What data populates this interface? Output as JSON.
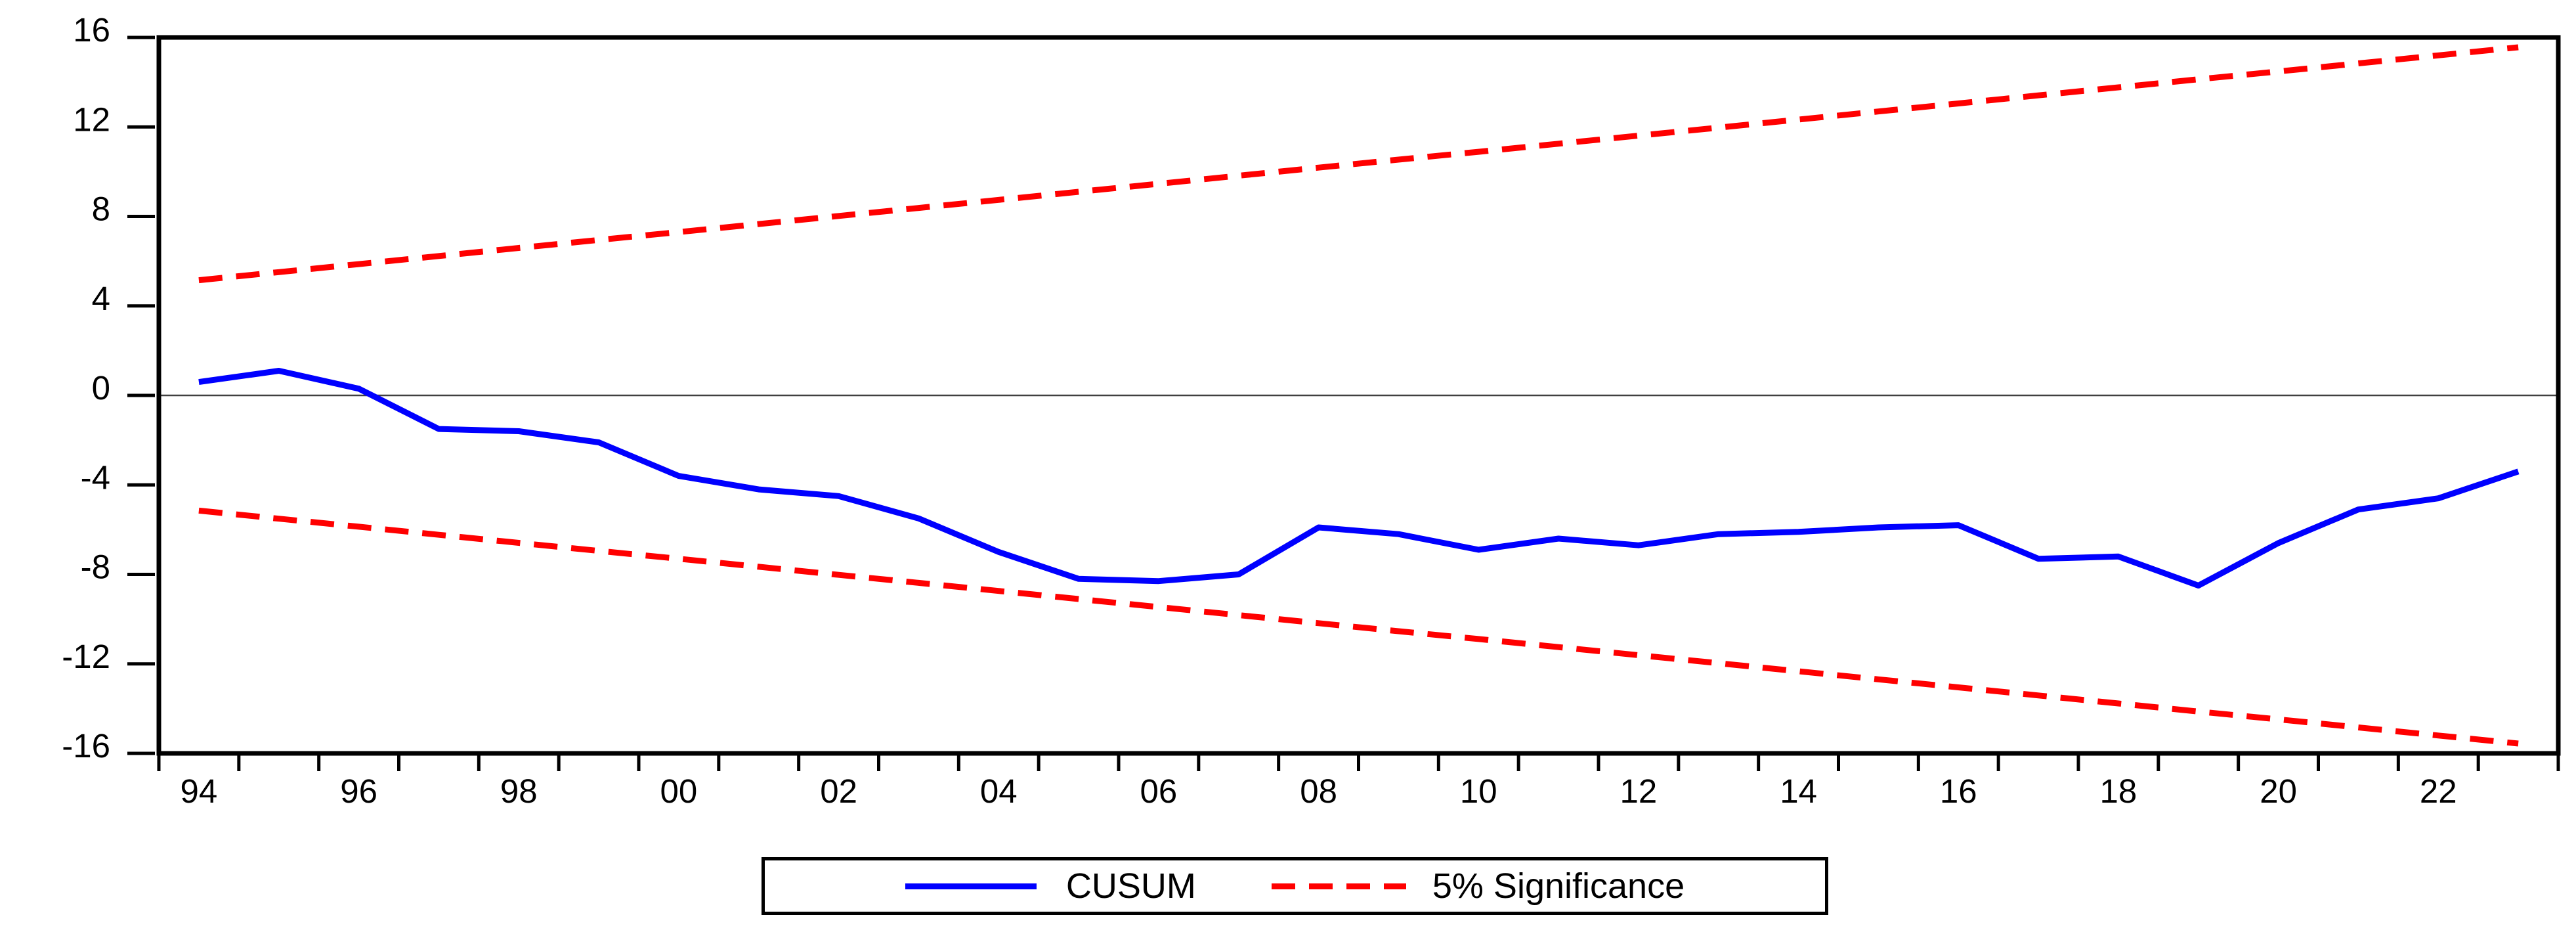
{
  "chart_data": {
    "type": "line",
    "title": "",
    "xlabel": "",
    "ylabel": "",
    "x": [
      1994,
      1995,
      1996,
      1997,
      1998,
      1999,
      2000,
      2001,
      2002,
      2003,
      2004,
      2005,
      2006,
      2007,
      2008,
      2009,
      2010,
      2011,
      2012,
      2013,
      2014,
      2015,
      2016,
      2017,
      2018,
      2019,
      2020,
      2021,
      2022,
      2023
    ],
    "x_tick_labels": [
      "94",
      "96",
      "98",
      "00",
      "02",
      "04",
      "06",
      "08",
      "10",
      "12",
      "14",
      "16",
      "18",
      "20",
      "22"
    ],
    "x_label_years": [
      1994,
      1996,
      1998,
      2000,
      2002,
      2004,
      2006,
      2008,
      2010,
      2012,
      2014,
      2016,
      2018,
      2020,
      2022
    ],
    "y_ticks": [
      "16",
      "12",
      "8",
      "4",
      "0",
      "-4",
      "-8",
      "-12",
      "-16"
    ],
    "y_tick_values": [
      16,
      12,
      8,
      4,
      0,
      -4,
      -8,
      -12,
      -16
    ],
    "ylim": [
      -16,
      16
    ],
    "grid": false,
    "zero_line": true,
    "series": [
      {
        "name": "CUSUM",
        "style": "solid",
        "color": "#0000ff",
        "values": [
          0.6,
          1.1,
          0.3,
          -1.5,
          -1.6,
          -2.1,
          -3.6,
          -4.2,
          -4.5,
          -5.5,
          -7.0,
          -8.2,
          -8.3,
          -8.0,
          -5.9,
          -6.2,
          -6.9,
          -6.4,
          -6.7,
          -6.2,
          -6.1,
          -5.9,
          -5.8,
          -7.3,
          -7.2,
          -8.5,
          -6.6,
          -5.1,
          -4.6,
          -3.4
        ]
      },
      {
        "name": "5% Significance (upper bound)",
        "style": "dashed",
        "color": "#ff0000",
        "values": [
          5.15,
          5.51,
          5.87,
          6.23,
          6.59,
          6.95,
          7.3,
          7.66,
          8.02,
          8.38,
          8.74,
          9.1,
          9.46,
          9.82,
          10.18,
          10.54,
          10.89,
          11.25,
          11.61,
          11.97,
          12.33,
          12.69,
          13.05,
          13.41,
          13.77,
          14.13,
          14.48,
          14.84,
          15.2,
          15.56
        ]
      },
      {
        "name": "5% Significance (lower bound)",
        "style": "dashed",
        "color": "#ff0000",
        "values": [
          -5.15,
          -5.51,
          -5.87,
          -6.23,
          -6.59,
          -6.95,
          -7.3,
          -7.66,
          -8.02,
          -8.38,
          -8.74,
          -9.1,
          -9.46,
          -9.82,
          -10.18,
          -10.54,
          -10.89,
          -11.25,
          -11.61,
          -11.97,
          -12.33,
          -12.69,
          -13.05,
          -13.41,
          -13.77,
          -14.13,
          -14.48,
          -14.84,
          -15.2,
          -15.56
        ]
      }
    ],
    "legend": {
      "position": "bottom-center",
      "entries": [
        {
          "label": "CUSUM",
          "color": "#0000ff",
          "style": "solid"
        },
        {
          "label": "5% Significance",
          "color": "#ff0000",
          "style": "dashed"
        }
      ]
    },
    "colors": {
      "cusum": "#0000ff",
      "significance": "#ff0000",
      "zero_line": "#404040",
      "frame": "#000000"
    }
  }
}
